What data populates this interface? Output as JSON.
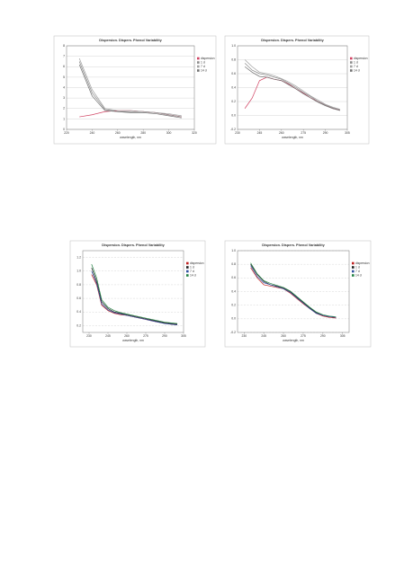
{
  "chart_data": [
    {
      "type": "line",
      "title": "Dispersion. Dispers. Phenol Variability",
      "x_label": "wavelength, nm",
      "legend_position": "right",
      "x": [
        230,
        240,
        250,
        260,
        270,
        280,
        290,
        300,
        310
      ],
      "xlim": [
        220,
        320
      ],
      "xticks": [
        220,
        240,
        260,
        280,
        300,
        320
      ],
      "ylim": [
        0,
        8
      ],
      "yticks": [
        0,
        1,
        2,
        3,
        4,
        5,
        6,
        7,
        8
      ],
      "grid": true,
      "grid_style": "solid",
      "series": [
        {
          "name": "dispersion",
          "color": "#d04060",
          "values": [
            1.2,
            1.4,
            1.7,
            1.8,
            1.8,
            1.7,
            1.6,
            1.4,
            1.2
          ]
        },
        {
          "name": "1 d",
          "color": "#8a8a8a",
          "values": [
            6.5,
            3.5,
            1.9,
            1.7,
            1.7,
            1.7,
            1.6,
            1.4,
            1.2
          ]
        },
        {
          "name": "7 d",
          "color": "#a0a0a0",
          "values": [
            6.8,
            3.8,
            2.0,
            1.8,
            1.8,
            1.7,
            1.6,
            1.5,
            1.3
          ]
        },
        {
          "name": "14 d",
          "color": "#707070",
          "values": [
            6.2,
            3.2,
            1.8,
            1.7,
            1.6,
            1.6,
            1.5,
            1.3,
            1.1
          ]
        }
      ]
    },
    {
      "type": "line",
      "title": "Dispersion. Dispers. Phenol Variability",
      "x_label": "wavelength, nm",
      "legend_position": "right",
      "x": [
        235,
        240,
        245,
        250,
        255,
        260,
        265,
        270,
        275,
        280,
        285,
        290,
        295,
        300
      ],
      "xlim": [
        230,
        305
      ],
      "xticks": [
        230,
        245,
        260,
        275,
        290,
        305
      ],
      "ylim": [
        -0.2,
        1.0
      ],
      "yticks": [
        {
          "value": -0.2,
          "label": "-0.2"
        },
        {
          "value": 0,
          "label": "0.0"
        },
        0.2,
        0.4,
        0.6,
        0.8,
        {
          "value": 1,
          "label": "1.0"
        }
      ],
      "grid": true,
      "grid_style": "solid",
      "series": [
        {
          "name": "dispersion",
          "color": "#d04060",
          "values": [
            0.1,
            0.25,
            0.5,
            0.55,
            0.52,
            0.5,
            0.45,
            0.38,
            0.32,
            0.25,
            0.2,
            0.15,
            0.1,
            0.08
          ]
        },
        {
          "name": "1 d",
          "color": "#8a8a8a",
          "values": [
            0.75,
            0.65,
            0.6,
            0.58,
            0.55,
            0.52,
            0.46,
            0.4,
            0.33,
            0.27,
            0.2,
            0.15,
            0.11,
            0.08
          ]
        },
        {
          "name": "7 d",
          "color": "#a0a0a0",
          "values": [
            0.8,
            0.7,
            0.62,
            0.6,
            0.57,
            0.53,
            0.48,
            0.42,
            0.35,
            0.28,
            0.22,
            0.16,
            0.12,
            0.09
          ]
        },
        {
          "name": "14 d",
          "color": "#707070",
          "values": [
            0.7,
            0.62,
            0.56,
            0.55,
            0.52,
            0.5,
            0.44,
            0.38,
            0.31,
            0.25,
            0.19,
            0.14,
            0.1,
            0.07
          ]
        }
      ]
    },
    {
      "type": "line",
      "title": "Dispersion. Dispers. Phenol Variability",
      "x_label": "wavelength, nm",
      "legend_position": "right",
      "x": [
        232,
        236,
        240,
        245,
        250,
        255,
        260,
        265,
        270,
        275,
        280,
        285,
        290,
        295,
        300
      ],
      "xlim": [
        225,
        305
      ],
      "xticks": [
        230,
        245,
        260,
        275,
        290,
        305
      ],
      "ylim": [
        0.1,
        1.3
      ],
      "yticks": [
        0.2,
        0.4,
        0.6,
        0.8,
        {
          "value": 1,
          "label": "1.0"
        },
        1.2
      ],
      "grid": true,
      "grid_style": "dashed",
      "series": [
        {
          "name": "dispersion",
          "color": "#c02020",
          "values": [
            0.95,
            0.8,
            0.5,
            0.42,
            0.38,
            0.36,
            0.35,
            0.33,
            0.31,
            0.29,
            0.27,
            0.25,
            0.24,
            0.22,
            0.21
          ]
        },
        {
          "name": "1 d",
          "color": "#202020",
          "values": [
            1.05,
            0.85,
            0.55,
            0.45,
            0.4,
            0.38,
            0.36,
            0.34,
            0.32,
            0.3,
            0.28,
            0.26,
            0.24,
            0.23,
            0.22
          ]
        },
        {
          "name": "7 d",
          "color": "#3050a0",
          "values": [
            1.0,
            0.82,
            0.52,
            0.43,
            0.39,
            0.37,
            0.35,
            0.33,
            0.31,
            0.29,
            0.27,
            0.25,
            0.23,
            0.22,
            0.21
          ]
        },
        {
          "name": "14 d",
          "color": "#208040",
          "values": [
            1.1,
            0.9,
            0.58,
            0.47,
            0.42,
            0.39,
            0.37,
            0.35,
            0.33,
            0.31,
            0.29,
            0.27,
            0.25,
            0.24,
            0.23
          ]
        }
      ]
    },
    {
      "type": "line",
      "title": "Dispersion. Dispers. Phenol Variability",
      "x_label": "wavelength, nm",
      "legend_position": "right",
      "x": [
        235,
        240,
        245,
        250,
        255,
        260,
        265,
        270,
        275,
        280,
        285,
        290,
        295,
        300
      ],
      "xlim": [
        225,
        310
      ],
      "xticks": [
        230,
        245,
        260,
        275,
        290,
        305
      ],
      "ylim": [
        -0.2,
        1.0
      ],
      "yticks": [
        {
          "value": -0.2,
          "label": "-0.2"
        },
        {
          "value": 0,
          "label": "0.0"
        },
        0.2,
        0.4,
        0.6,
        0.8,
        {
          "value": 1,
          "label": "1.0"
        }
      ],
      "grid": true,
      "grid_style": "dashed",
      "series": [
        {
          "name": "dispersion",
          "color": "#c02020",
          "values": [
            0.75,
            0.6,
            0.5,
            0.48,
            0.46,
            0.44,
            0.38,
            0.3,
            0.22,
            0.15,
            0.08,
            0.04,
            0.02,
            0.01
          ]
        },
        {
          "name": "1 d",
          "color": "#202020",
          "values": [
            0.8,
            0.65,
            0.55,
            0.5,
            0.48,
            0.45,
            0.4,
            0.32,
            0.24,
            0.16,
            0.09,
            0.05,
            0.03,
            0.02
          ]
        },
        {
          "name": "7 d",
          "color": "#3050a0",
          "values": [
            0.78,
            0.62,
            0.53,
            0.5,
            0.47,
            0.44,
            0.39,
            0.31,
            0.23,
            0.15,
            0.08,
            0.05,
            0.03,
            0.02
          ]
        },
        {
          "name": "14 d",
          "color": "#208040",
          "values": [
            0.82,
            0.66,
            0.56,
            0.52,
            0.49,
            0.46,
            0.41,
            0.33,
            0.25,
            0.17,
            0.1,
            0.06,
            0.04,
            0.03
          ]
        }
      ]
    }
  ]
}
